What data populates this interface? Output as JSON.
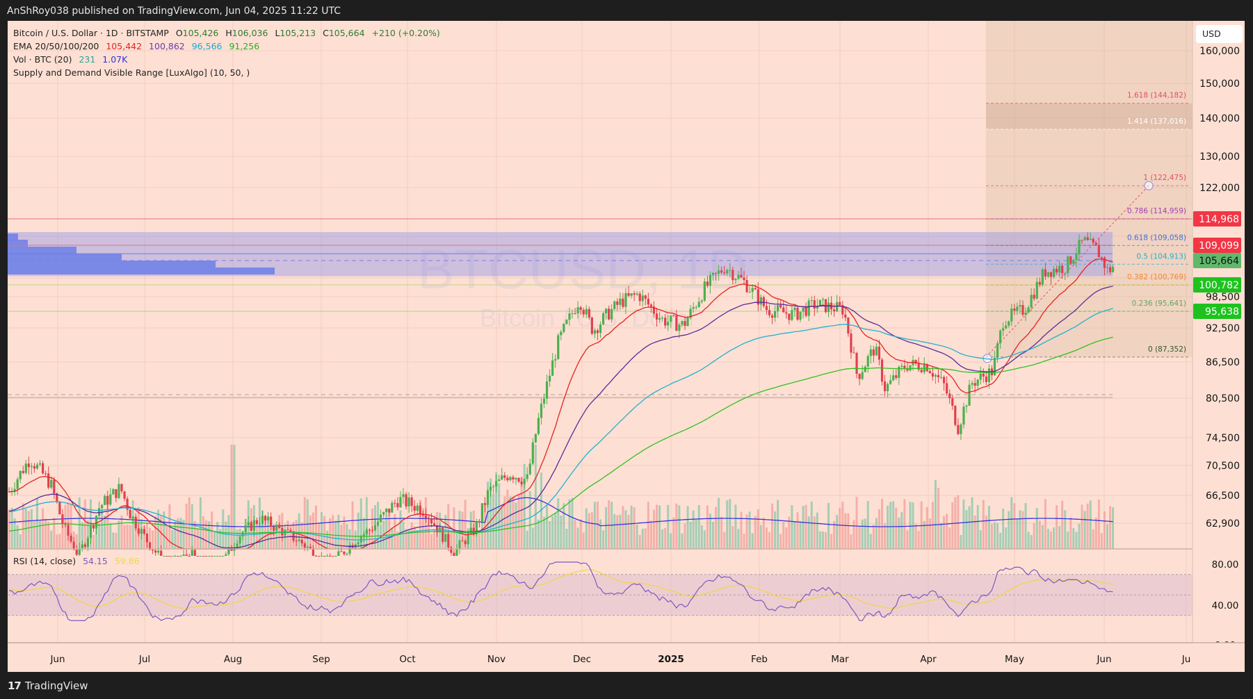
{
  "header": {
    "published_text": "AnShRoy038 published on TradingView.com, Jun 04, 2025 11:22 UTC"
  },
  "legend": {
    "symbol": "Bitcoin / U.S. Dollar · 1D · BITSTAMP",
    "open_label": "O",
    "open": "105,426",
    "high_label": "H",
    "high": "106,036",
    "low_label": "L",
    "low": "105,213",
    "close_label": "C",
    "close": "105,664",
    "change": "+210 (+0.20%)",
    "ema_label": "EMA 20/50/100/200",
    "ema20": "105,442",
    "ema50": "100,862",
    "ema100": "96,566",
    "ema200": "91,256",
    "vol_label": "Vol · BTC (20)",
    "vol": "231",
    "vol_ma": "1.07K",
    "indicator": "Supply and Demand Visible Range [LuxAlgo] (10, 50, )"
  },
  "rsi": {
    "label": "RSI (14, close)",
    "value": "54.15",
    "ma": "59.86"
  },
  "watermark": {
    "symbol": "BTCUSD, 1D",
    "name": "Bitcoin / U.S. Dollar"
  },
  "price_axis": {
    "currency_button": "USD",
    "ticks": [
      "160,000",
      "150,000",
      "140,000",
      "130,000",
      "122,000",
      "98,500",
      "92,500",
      "86,500",
      "80,500",
      "74,500",
      "70,500",
      "66,500",
      "62,900"
    ],
    "badges": [
      {
        "value": "114,968",
        "color": "#f23645"
      },
      {
        "value": "109,099",
        "color": "#f23645"
      },
      {
        "value": "105,664",
        "color": "#5fb86b"
      },
      {
        "value": "100,782",
        "color": "#1ec21e"
      },
      {
        "value": "95,638",
        "color": "#1ec21e"
      }
    ]
  },
  "rsi_axis": {
    "ticks": [
      "80.00",
      "40.00",
      "0.00"
    ]
  },
  "time_axis": {
    "labels": [
      "Jun",
      "Jul",
      "Aug",
      "Sep",
      "Oct",
      "Nov",
      "Dec",
      "2025",
      "Feb",
      "Mar",
      "Apr",
      "May",
      "Jun",
      "Ju"
    ]
  },
  "fib_levels": [
    {
      "label": "1.618 (144,182)",
      "color": "#e0506a"
    },
    {
      "label": "1.414 (137,016)",
      "color": "#ffffff"
    },
    {
      "label": "1 (122,475)",
      "color": "#e0506a"
    },
    {
      "label": "0.786 (114,959)",
      "color": "#a040b0"
    },
    {
      "label": "0.618 (109,058)",
      "color": "#3f6fe0"
    },
    {
      "label": "0.5 (104,913)",
      "color": "#20b0d0"
    },
    {
      "label": "0.382 (100,769)",
      "color": "#f08a30"
    },
    {
      "label": "0.236 (95,641)",
      "color": "#60a860"
    },
    {
      "label": "0 (87,352)",
      "color": "#2a5a2a"
    }
  ],
  "footer": {
    "brand": "TradingView"
  },
  "colors": {
    "background": "#fde0d3",
    "up": "#4caf50",
    "down": "#e0404e",
    "ema20": "#e8201f",
    "ema50": "#5a2a9a",
    "ema100": "#22b0d0",
    "ema200": "#30c020",
    "supply_zone": "#9e9ee8",
    "rsi_line": "#7e57c2",
    "rsi_ma": "#f2d54a"
  },
  "chart_data": {
    "type": "candlestick",
    "title": "Bitcoin / U.S. Dollar · 1D · BITSTAMP",
    "x_range": [
      "2024-05",
      "2025-06"
    ],
    "x_ticks": [
      "Jun",
      "Jul",
      "Aug",
      "Sep",
      "Oct",
      "Nov",
      "Dec",
      "2025",
      "Feb",
      "Mar",
      "Apr",
      "May",
      "Jun"
    ],
    "ylabel": "USD",
    "ylim": [
      58000,
      165000
    ],
    "y_ticks": [
      160000,
      150000,
      140000,
      130000,
      122000,
      98500,
      92500,
      86500,
      80500,
      74500,
      70500,
      66500,
      62900
    ],
    "ohlc_last": {
      "open": 105426,
      "high": 106036,
      "low": 105213,
      "close": 105664,
      "change": 210,
      "change_pct": 0.2
    },
    "monthly_close_approx": {
      "x": [
        "Jun",
        "Jul",
        "Aug",
        "Sep",
        "Oct",
        "Nov",
        "Dec",
        "Jan",
        "Feb",
        "Mar",
        "Apr",
        "May",
        "Jun"
      ],
      "close": [
        67500,
        62500,
        65000,
        58500,
        63500,
        70000,
        97000,
        94000,
        102000,
        84000,
        82500,
        94500,
        105664
      ]
    },
    "series": [
      {
        "name": "EMA 20",
        "last": 105442,
        "color": "#e8201f"
      },
      {
        "name": "EMA 50",
        "last": 100862,
        "color": "#5a2a9a"
      },
      {
        "name": "EMA 100",
        "last": 96566,
        "color": "#22b0d0"
      },
      {
        "name": "EMA 200",
        "last": 91256,
        "color": "#30c020"
      },
      {
        "name": "Volume MA (20)",
        "last": "1.07K"
      },
      {
        "name": "Volume",
        "last": 231
      }
    ],
    "horizontal_levels": [
      114968,
      109099,
      105664,
      100782,
      95638
    ],
    "supply_zone": {
      "top": 112000,
      "bottom": 102500,
      "color": "#9e9ee8"
    },
    "fibonacci_extension": {
      "0": 87352,
      "0.236": 95641,
      "0.382": 100769,
      "0.5": 104913,
      "0.618": 109058,
      "0.786": 114959,
      "1": 122475,
      "1.414": 137016,
      "1.618": 144182
    },
    "rsi": {
      "period": 14,
      "value": 54.15,
      "ma": 59.86,
      "ylim": [
        0,
        100
      ],
      "bands": [
        70,
        50,
        30
      ],
      "y_ticks": [
        80,
        40,
        0
      ]
    }
  }
}
